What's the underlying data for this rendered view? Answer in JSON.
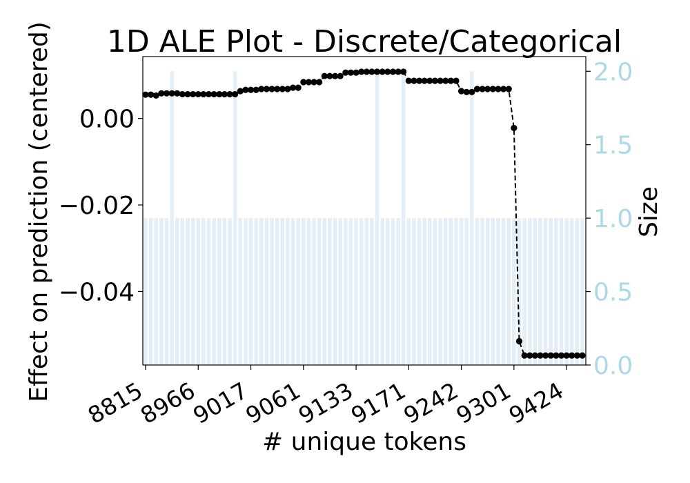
{
  "chart_data": {
    "type": "line",
    "title": "1D ALE Plot - Discrete/Categorical",
    "xlabel": "# unique tokens",
    "ylabel": "Effect on prediction (centered)",
    "y2label": "Size",
    "n_points": 84,
    "ylim": [
      -0.057,
      0.0143
    ],
    "y2lim": [
      0,
      2.1
    ],
    "yticks": [
      "0.00",
      "−0.02",
      "−0.04"
    ],
    "ytick_values": [
      0.0,
      -0.02,
      -0.04
    ],
    "y2ticks": [
      "0.0",
      "0.5",
      "1.0",
      "1.5",
      "2.0"
    ],
    "y2tick_values": [
      0.0,
      0.5,
      1.0,
      1.5,
      2.0
    ],
    "xtick_labels": [
      "8815",
      "8966",
      "9017",
      "9061",
      "9133",
      "9171",
      "9242",
      "9301",
      "9424"
    ],
    "xtick_indices": [
      0,
      10,
      20,
      30,
      40,
      50,
      60,
      70,
      80
    ],
    "series": [
      {
        "name": "",
        "color": "#000000",
        "values": [
          0.0055,
          0.0055,
          0.0053,
          0.0058,
          0.0058,
          0.0058,
          0.0058,
          0.0056,
          0.0056,
          0.0056,
          0.0056,
          0.0056,
          0.0056,
          0.0056,
          0.0056,
          0.0056,
          0.0056,
          0.0056,
          0.0063,
          0.0066,
          0.0066,
          0.0066,
          0.0068,
          0.0068,
          0.0068,
          0.0068,
          0.0068,
          0.0068,
          0.0071,
          0.0071,
          0.0084,
          0.0084,
          0.0084,
          0.0084,
          0.0098,
          0.0098,
          0.0098,
          0.0098,
          0.0106,
          0.0106,
          0.0106,
          0.0108,
          0.0108,
          0.0108,
          0.0108,
          0.0108,
          0.0108,
          0.0108,
          0.0108,
          0.0108,
          0.0087,
          0.0087,
          0.0087,
          0.0087,
          0.0087,
          0.0087,
          0.0087,
          0.0087,
          0.0087,
          0.0087,
          0.0063,
          0.0061,
          0.0061,
          0.0068,
          0.0068,
          0.0068,
          0.0068,
          0.0068,
          0.0068,
          0.0068,
          -0.0022,
          -0.0515,
          -0.0548,
          -0.0548,
          -0.0548,
          -0.0548,
          -0.0548,
          -0.0548,
          -0.0548,
          -0.0548,
          -0.0548,
          -0.0548,
          -0.0548,
          -0.0548
        ]
      }
    ],
    "bar_series": {
      "name": "",
      "color": "#e4eef7",
      "values": [
        1,
        1,
        1,
        1,
        1,
        2,
        1,
        1,
        1,
        1,
        1,
        1,
        1,
        1,
        1,
        1,
        1,
        2,
        1,
        1,
        1,
        1,
        1,
        1,
        1,
        1,
        1,
        1,
        1,
        1,
        1,
        1,
        1,
        1,
        1,
        1,
        1,
        1,
        1,
        1,
        1,
        1,
        1,
        1,
        2,
        1,
        1,
        1,
        1,
        2,
        1,
        1,
        1,
        1,
        1,
        1,
        1,
        1,
        1,
        1,
        1,
        1,
        2,
        1,
        1,
        1,
        1,
        1,
        1,
        1,
        1,
        1,
        1,
        1,
        1,
        1,
        1,
        1,
        1,
        1,
        1,
        1,
        1,
        1
      ]
    },
    "right_axis_color": "#add8e6",
    "grid": false,
    "legend": "none"
  }
}
